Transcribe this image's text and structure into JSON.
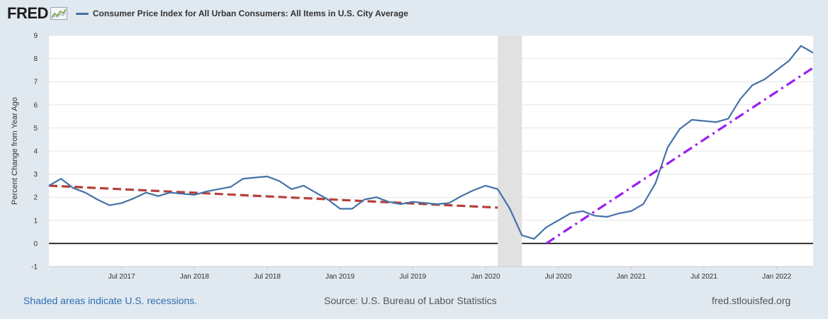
{
  "header": {
    "logo_text": "FRED",
    "series_title": "Consumer Price Index for All Urban Consumers: All Items in U.S. City Average"
  },
  "footer": {
    "recession_note": "Shaded areas indicate U.S. recessions.",
    "source": "Source: U.S. Bureau of Labor Statistics",
    "website": "fred.stlouisfed.org"
  },
  "colors": {
    "series": "#4572a7",
    "trend_pre": "#b5403a",
    "trend_post": "#9b1ff0",
    "recession": "#e1e1e1"
  },
  "chart_data": {
    "type": "line",
    "title": "Consumer Price Index for All Urban Consumers: All Items in U.S. City Average",
    "ylabel": "Percent Change from Year Ago",
    "xlabel": "",
    "ylim": [
      -1,
      9
    ],
    "yticks": [
      -1,
      0,
      1,
      2,
      3,
      4,
      5,
      6,
      7,
      8,
      9
    ],
    "xlim": [
      "2017-01",
      "2022-04"
    ],
    "xticks": [
      {
        "date": "2017-07",
        "label": "Jul 2017"
      },
      {
        "date": "2018-01",
        "label": "Jan 2018"
      },
      {
        "date": "2018-07",
        "label": "Jul 2018"
      },
      {
        "date": "2019-01",
        "label": "Jan 2019"
      },
      {
        "date": "2019-07",
        "label": "Jul 2019"
      },
      {
        "date": "2020-01",
        "label": "Jan 2020"
      },
      {
        "date": "2020-07",
        "label": "Jul 2020"
      },
      {
        "date": "2021-01",
        "label": "Jan 2021"
      },
      {
        "date": "2021-07",
        "label": "Jul 2021"
      },
      {
        "date": "2022-01",
        "label": "Jan 2022"
      }
    ],
    "grid": "horizontal",
    "series": [
      {
        "name": "Consumer Price Index for All Urban Consumers: All Items in U.S. City Average",
        "x": [
          "2017-01",
          "2017-02",
          "2017-03",
          "2017-04",
          "2017-05",
          "2017-06",
          "2017-07",
          "2017-08",
          "2017-09",
          "2017-10",
          "2017-11",
          "2017-12",
          "2018-01",
          "2018-02",
          "2018-03",
          "2018-04",
          "2018-05",
          "2018-06",
          "2018-07",
          "2018-08",
          "2018-09",
          "2018-10",
          "2018-11",
          "2018-12",
          "2019-01",
          "2019-02",
          "2019-03",
          "2019-04",
          "2019-05",
          "2019-06",
          "2019-07",
          "2019-08",
          "2019-09",
          "2019-10",
          "2019-11",
          "2019-12",
          "2020-01",
          "2020-02",
          "2020-03",
          "2020-04",
          "2020-05",
          "2020-06",
          "2020-07",
          "2020-08",
          "2020-09",
          "2020-10",
          "2020-11",
          "2020-12",
          "2021-01",
          "2021-02",
          "2021-03",
          "2021-04",
          "2021-05",
          "2021-06",
          "2021-07",
          "2021-08",
          "2021-09",
          "2021-10",
          "2021-11",
          "2021-12",
          "2022-01",
          "2022-02",
          "2022-03",
          "2022-04"
        ],
        "values": [
          2.5,
          2.8,
          2.4,
          2.2,
          1.9,
          1.65,
          1.75,
          1.95,
          2.2,
          2.05,
          2.2,
          2.15,
          2.1,
          2.25,
          2.35,
          2.45,
          2.8,
          2.85,
          2.9,
          2.7,
          2.35,
          2.5,
          2.2,
          1.9,
          1.5,
          1.5,
          1.9,
          2.0,
          1.8,
          1.7,
          1.8,
          1.75,
          1.7,
          1.75,
          2.05,
          2.3,
          2.5,
          2.35,
          1.5,
          0.35,
          0.2,
          0.7,
          1.0,
          1.3,
          1.4,
          1.2,
          1.15,
          1.3,
          1.4,
          1.7,
          2.6,
          4.15,
          4.95,
          5.35,
          5.3,
          5.25,
          5.4,
          6.25,
          6.85,
          7.1,
          7.5,
          7.9,
          8.55,
          8.25
        ]
      }
    ],
    "trend_lines": [
      {
        "style": "dashed",
        "color": "#b5403a",
        "from": [
          "2017-01",
          2.5
        ],
        "to": [
          "2020-02",
          1.55
        ]
      },
      {
        "style": "dash-dot",
        "color": "#9b1ff0",
        "from": [
          "2020-06",
          0.0
        ],
        "to": [
          "2022-04",
          7.6
        ]
      }
    ],
    "recessions": [
      {
        "start": "2020-02",
        "end": "2020-04"
      }
    ]
  }
}
